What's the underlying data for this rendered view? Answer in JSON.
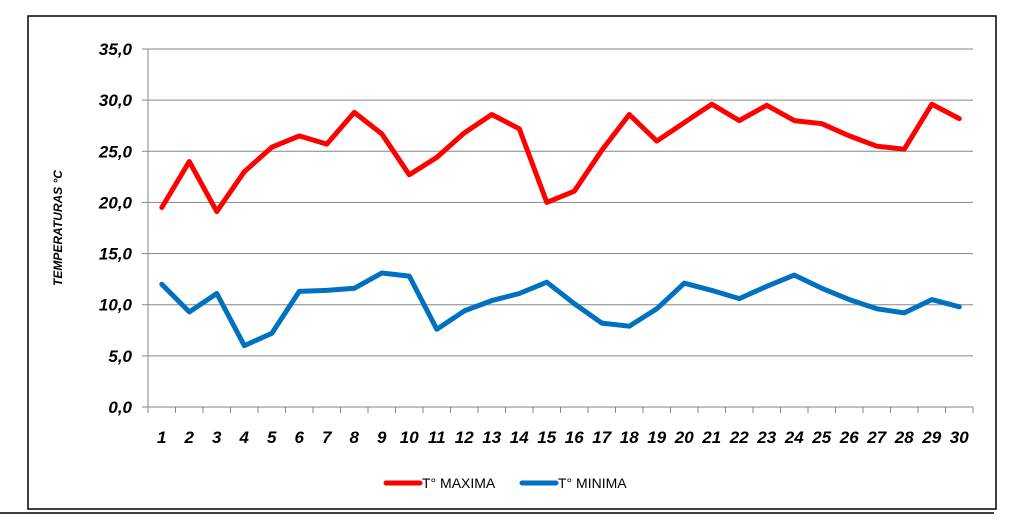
{
  "chart_data": {
    "type": "line",
    "ylabel": "TEMPERATURAS °C",
    "xlabel": "",
    "ylim": [
      0,
      35
    ],
    "y_ticks": [
      "0,0",
      "5,0",
      "10,0",
      "15,0",
      "20,0",
      "25,0",
      "30,0",
      "35,0"
    ],
    "y_tick_values": [
      0,
      5,
      10,
      15,
      20,
      25,
      30,
      35
    ],
    "categories": [
      "1",
      "2",
      "3",
      "4",
      "5",
      "6",
      "7",
      "8",
      "9",
      "10",
      "11",
      "12",
      "13",
      "14",
      "15",
      "16",
      "17",
      "18",
      "19",
      "20",
      "21",
      "22",
      "23",
      "24",
      "25",
      "26",
      "27",
      "28",
      "29",
      "30"
    ],
    "grid": true,
    "legend_position": "bottom",
    "series": [
      {
        "name": "T° MAXIMA",
        "color": "#ff0000",
        "values": [
          19.5,
          24.0,
          19.1,
          23.0,
          25.4,
          26.5,
          25.7,
          28.8,
          26.7,
          22.7,
          24.4,
          26.8,
          28.6,
          27.2,
          20.0,
          21.1,
          25.1,
          28.6,
          26.0,
          27.8,
          29.6,
          28.0,
          29.5,
          28.0,
          27.7,
          26.5,
          25.5,
          25.2,
          29.6,
          28.2
        ]
      },
      {
        "name": "T° MINIMA",
        "color": "#0070c0",
        "values": [
          12.0,
          9.3,
          11.1,
          6.0,
          7.2,
          11.3,
          11.4,
          11.6,
          13.1,
          12.8,
          7.6,
          9.4,
          10.4,
          11.1,
          12.2,
          10.1,
          8.2,
          7.9,
          9.6,
          12.1,
          11.4,
          10.6,
          11.8,
          12.9,
          11.6,
          10.5,
          9.6,
          9.2,
          10.5,
          9.8
        ]
      }
    ]
  }
}
